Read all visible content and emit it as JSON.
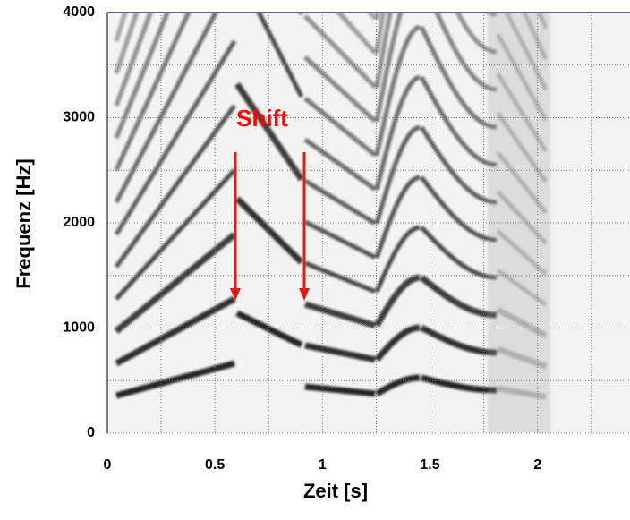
{
  "chart_data": {
    "type": "spectrogram",
    "x_label": "Zeit [s]",
    "y_label": "Frequenz [Hz]",
    "xlim": [
      0,
      2.43
    ],
    "ylim": [
      0,
      4000
    ],
    "xticks": [
      0,
      0.5,
      1,
      1.5,
      2
    ],
    "yticks": [
      0,
      1000,
      2000,
      3000,
      4000
    ],
    "x_minor_grid": [
      0.25,
      0.75,
      1.25,
      1.75,
      2.25
    ],
    "y_minor_grid": [
      500,
      1500,
      2500,
      3500
    ],
    "grid": true,
    "annotation": {
      "text": "Shift",
      "color": "#ff0000"
    }
  }
}
